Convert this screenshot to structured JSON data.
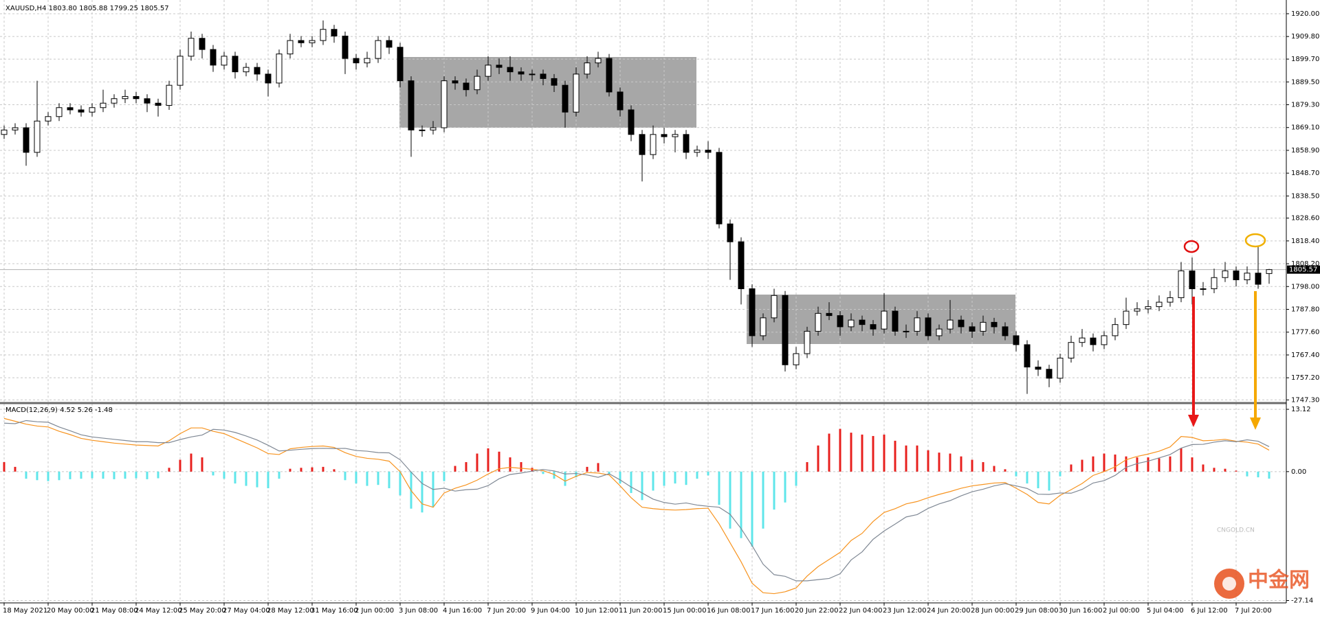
{
  "chart_data": [
    {
      "type": "candlestick",
      "header": "XAUUSD,H4  1803.80 1805.88 1799.25 1805.57",
      "categories": [
        "18 May 2021",
        null,
        null,
        null,
        "20 May 00:00",
        null,
        null,
        null,
        "21 May 08:00",
        null,
        null,
        null,
        "24 May 12:00",
        null,
        null,
        null,
        "25 May 20:00",
        null,
        null,
        null,
        "27 May 04:00",
        null,
        null,
        null,
        "28 May 12:00",
        null,
        null,
        null,
        "31 May 16:00",
        null,
        null,
        null,
        "2 Jun 00:00",
        null,
        null,
        null,
        "3 Jun 08:00",
        null,
        null,
        null,
        "4 Jun 16:00",
        null,
        null,
        null,
        "7 Jun 20:00",
        null,
        null,
        null,
        "9 Jun 04:00",
        null,
        null,
        null,
        "10 Jun 12:00",
        null,
        null,
        null,
        "11 Jun 20:00",
        null,
        null,
        null,
        "15 Jun 00:00",
        null,
        null,
        null,
        "16 Jun 08:00",
        null,
        null,
        null,
        "17 Jun 16:00",
        null,
        null,
        null,
        "20 Jun 22:00",
        null,
        null,
        null,
        "22 Jun 04:00",
        null,
        null,
        null,
        "23 Jun 12:00",
        null,
        null,
        null,
        "24 Jun 20:00",
        null,
        null,
        null,
        "28 Jun 00:00",
        null,
        null,
        null,
        "29 Jun 08:00",
        null,
        null,
        null,
        "30 Jun 16:00",
        null,
        null,
        null,
        "2 Jul 00:00",
        null,
        null,
        null,
        "5 Jul 04:00",
        null,
        null,
        null,
        "6 Jul 12:00",
        null,
        null,
        null,
        "7 Jul 20:00",
        null,
        null,
        null
      ],
      "open": [
        1866,
        1868,
        1869,
        1858,
        1872,
        1874,
        1878,
        1877,
        1876,
        1878,
        1880,
        1882,
        1883,
        1882,
        1880,
        1879,
        1888,
        1901,
        1909,
        1904,
        1897,
        1901,
        1894,
        1896,
        1893,
        1889,
        1902,
        1908,
        1907,
        1908,
        1913,
        1910,
        1900,
        1898,
        1900,
        1908,
        1905,
        1890,
        1868,
        1868,
        1869,
        1890,
        1889,
        1886,
        1892,
        1897,
        1896,
        1894,
        1893,
        1893,
        1891,
        1888,
        1876,
        1893,
        1898,
        1900,
        1885,
        1877,
        1866,
        1857,
        1866,
        1865,
        1866,
        1858,
        1859,
        1858,
        1826,
        1818,
        1797,
        1776,
        1784,
        1794,
        1763,
        1768,
        1778,
        1786,
        1785,
        1780,
        1783,
        1781,
        1779,
        1787,
        1778,
        1778,
        1784,
        1776,
        1779,
        1783,
        1780,
        1778,
        1782,
        1780,
        1776,
        1772,
        1762,
        1761,
        1757,
        1766,
        1773,
        1775,
        1772,
        1776,
        1781,
        1787,
        1788,
        1789,
        1791,
        1793,
        1805,
        1797,
        1797,
        1802,
        1805,
        1801,
        1804,
        1803.8
      ],
      "high": [
        1870,
        1871,
        1871,
        1890,
        1876,
        1880,
        1880,
        1879,
        1880,
        1886,
        1884,
        1886,
        1885,
        1884,
        1882,
        1890,
        1904,
        1912,
        1911,
        1906,
        1903,
        1903,
        1898,
        1898,
        1895,
        1904,
        1911,
        1910,
        1910,
        1917,
        1915,
        1912,
        1902,
        1903,
        1910,
        1910,
        1907,
        1892,
        1870,
        1872,
        1892,
        1892,
        1891,
        1895,
        1901,
        1900,
        1901,
        1896,
        1895,
        1895,
        1893,
        1890,
        1896,
        1901,
        1903,
        1902,
        1887,
        1879,
        1868,
        1870,
        1869,
        1868,
        1868,
        1861,
        1863,
        1860,
        1828,
        1820,
        1799,
        1786,
        1797,
        1796,
        1771,
        1780,
        1789,
        1791,
        1787,
        1786,
        1785,
        1783,
        1795,
        1789,
        1781,
        1787,
        1786,
        1781,
        1792,
        1785,
        1782,
        1785,
        1784,
        1782,
        1778,
        1774,
        1765,
        1763,
        1768,
        1776,
        1779,
        1777,
        1778,
        1784,
        1793,
        1791,
        1792,
        1794,
        1796,
        1809,
        1811,
        1800,
        1806,
        1809,
        1807,
        1807,
        1816,
        1805.88
      ],
      "low": [
        1864,
        1866,
        1852,
        1856,
        1870,
        1872,
        1875,
        1874,
        1874,
        1876,
        1878,
        1880,
        1880,
        1876,
        1874,
        1877,
        1886,
        1899,
        1900,
        1894,
        1895,
        1891,
        1892,
        1890,
        1883,
        1887,
        1900,
        1905,
        1905,
        1906,
        1907,
        1893,
        1895,
        1896,
        1898,
        1902,
        1887,
        1856,
        1865,
        1866,
        1867,
        1886,
        1883,
        1884,
        1890,
        1893,
        1890,
        1890,
        1890,
        1888,
        1885,
        1869,
        1874,
        1891,
        1896,
        1883,
        1874,
        1863,
        1845,
        1855,
        1862,
        1858,
        1855,
        1856,
        1855,
        1824,
        1801,
        1790,
        1771,
        1774,
        1782,
        1760,
        1761,
        1766,
        1776,
        1783,
        1776,
        1778,
        1778,
        1776,
        1777,
        1776,
        1775,
        1776,
        1774,
        1774,
        1777,
        1777,
        1775,
        1776,
        1777,
        1774,
        1769,
        1750,
        1758,
        1753,
        1755,
        1764,
        1771,
        1769,
        1770,
        1774,
        1779,
        1785,
        1786,
        1787,
        1789,
        1791,
        1790,
        1794,
        1795,
        1800,
        1798,
        1799,
        1797,
        1799.25
      ],
      "close": [
        1868,
        1869,
        1858,
        1872,
        1874,
        1878,
        1877,
        1876,
        1878,
        1880,
        1882,
        1883,
        1882,
        1880,
        1879,
        1888,
        1901,
        1909,
        1904,
        1897,
        1901,
        1894,
        1896,
        1893,
        1889,
        1902,
        1908,
        1907,
        1908,
        1913,
        1910,
        1900,
        1898,
        1900,
        1908,
        1905,
        1890,
        1868,
        1868,
        1869,
        1890,
        1889,
        1886,
        1892,
        1897,
        1896,
        1894,
        1893,
        1893,
        1891,
        1888,
        1876,
        1893,
        1898,
        1900,
        1885,
        1877,
        1866,
        1857,
        1866,
        1865,
        1866,
        1858,
        1859,
        1858,
        1826,
        1818,
        1797,
        1776,
        1784,
        1794,
        1763,
        1768,
        1778,
        1786,
        1785,
        1780,
        1783,
        1781,
        1779,
        1787,
        1778,
        1778,
        1784,
        1776,
        1779,
        1783,
        1780,
        1778,
        1782,
        1780,
        1776,
        1772,
        1762,
        1761,
        1757,
        1766,
        1773,
        1775,
        1772,
        1776,
        1781,
        1787,
        1788,
        1789,
        1791,
        1793,
        1805,
        1797,
        1797,
        1802,
        1805,
        1801,
        1804,
        1799,
        1805.57
      ],
      "bull_color": "#ffffff",
      "bear_color": "#000000",
      "current_price": 1805.57,
      "ylim": [
        1746.5,
        1924.9
      ],
      "yticks": [
        {
          "value": 1920,
          "label": "1920.00"
        },
        {
          "value": 1909.8,
          "label": "1909.80"
        },
        {
          "value": 1899.7,
          "label": "1899.70"
        },
        {
          "value": 1889.5,
          "label": "1889.50"
        },
        {
          "value": 1879.3,
          "label": "1879.30"
        },
        {
          "value": 1869.1,
          "label": "1869.10"
        },
        {
          "value": 1858.9,
          "label": "1858.90"
        },
        {
          "value": 1848.7,
          "label": "1848.70"
        },
        {
          "value": 1838.5,
          "label": "1838.50"
        },
        {
          "value": 1828.6,
          "label": "1828.60"
        },
        {
          "value": 1818.4,
          "label": "1818.40"
        },
        {
          "value": 1808.2,
          "label": "1808.20"
        },
        {
          "value": 1798,
          "label": "1798.00"
        },
        {
          "value": 1787.8,
          "label": "1787.80"
        },
        {
          "value": 1777.6,
          "label": "1777.60"
        },
        {
          "value": 1767.4,
          "label": "1767.40"
        },
        {
          "value": 1757.2,
          "label": "1757.20"
        },
        {
          "value": 1747.3,
          "label": "1747.30"
        }
      ],
      "grid": true
    },
    {
      "type": "macd",
      "title": "MACD(12,26,9) 4.52 5.26 -1.48",
      "histogram": {
        "pos_color": "#e8201e",
        "neg_color": "#5fe6ea",
        "values": [
          2,
          1,
          -1.5,
          -1.8,
          -2,
          -1.8,
          -1.6,
          -1.5,
          -1.4,
          -1.5,
          -1.6,
          -1.5,
          -1.4,
          -1.6,
          -1.4,
          0.8,
          2.5,
          3.8,
          3,
          -0.8,
          -1.5,
          -2.5,
          -3,
          -3.3,
          -3.5,
          -1.5,
          0.6,
          0.8,
          0.9,
          1,
          0.5,
          -1.8,
          -2.5,
          -3,
          -2.8,
          -3.5,
          -5,
          -7.8,
          -8.6,
          -7.5,
          -2,
          1.2,
          2,
          3.8,
          4.9,
          4.2,
          3,
          2,
          0.8,
          -0.5,
          -1.5,
          -3,
          -1.2,
          1,
          1.8,
          -0.5,
          -2.5,
          -4.5,
          -6,
          -4,
          -3,
          -2.5,
          -2.8,
          -1.5,
          -0.8,
          -7,
          -12,
          -14,
          -15.8,
          -12,
          -8,
          -6.5,
          -3,
          2,
          5.5,
          8,
          9,
          8.2,
          7.8,
          7.5,
          7.8,
          6.5,
          5.5,
          5.5,
          4.5,
          4,
          3.8,
          3.2,
          2.5,
          2,
          1.2,
          0.5,
          -1,
          -2.5,
          -3.5,
          -4,
          -1,
          1.5,
          2.5,
          3.2,
          3.8,
          3.6,
          3.2,
          3,
          3,
          2.8,
          3.2,
          4.9,
          3,
          1.5,
          0.8,
          0.6,
          0.2,
          -1,
          -1.2,
          -1.48
        ]
      },
      "lines": [
        {
          "color": "#f7931e",
          "values": [
            11.2,
            10.6,
            10,
            9.6,
            9.4,
            8.5,
            7.8,
            7,
            6.6,
            6.3,
            6,
            5.8,
            5.6,
            5.5,
            5.4,
            6.5,
            8,
            9.2,
            9.2,
            8.5,
            8,
            7,
            6,
            5,
            3.8,
            3.6,
            4.8,
            5.1,
            5.3,
            5.4,
            5.1,
            4,
            3.2,
            2.8,
            2.6,
            2.2,
            0,
            -4,
            -6.8,
            -7.5,
            -4.5,
            -3.5,
            -2.8,
            -1.8,
            -0.5,
            0.6,
            0.9,
            0.7,
            0.5,
            0.2,
            -0.6,
            -2,
            -1,
            -0.2,
            -0.3,
            -0.7,
            -3,
            -5.5,
            -7.5,
            -7.8,
            -8,
            -8.1,
            -8,
            -7.8,
            -7.7,
            -11,
            -15,
            -19,
            -23.5,
            -25.5,
            -25.7,
            -25.3,
            -24.5,
            -22,
            -20,
            -18.5,
            -17,
            -14.5,
            -13,
            -10.5,
            -8.6,
            -7.8,
            -6.8,
            -6.3,
            -5.5,
            -4.8,
            -4.2,
            -3.5,
            -3,
            -2.7,
            -2.4,
            -2.3,
            -3.5,
            -4.8,
            -6.5,
            -6.8,
            -5,
            -3.8,
            -2.5,
            -0.8,
            0,
            1,
            2.5,
            3.2,
            3.7,
            4.3,
            5.2,
            7.4,
            7.2,
            6.5,
            6.6,
            6.8,
            6.4,
            6.2,
            5.8,
            4.52
          ]
        },
        {
          "color": "#7f8894",
          "values": [
            10.2,
            10.1,
            10.75,
            10.5,
            10.4,
            9.4,
            8.6,
            7.75,
            7.3,
            7.05,
            6.8,
            6.55,
            6.3,
            6.3,
            6.1,
            6.1,
            6.75,
            7.3,
            7.7,
            8.9,
            8.75,
            8.25,
            7.5,
            6.65,
            5.55,
            4.35,
            4.5,
            4.7,
            4.85,
            4.9,
            4.85,
            4.9,
            4.45,
            4.3,
            4,
            3.95,
            2.5,
            -0.1,
            -2.5,
            -3.75,
            -3.5,
            -4.1,
            -3.8,
            -3.7,
            -2.95,
            -1.5,
            -0.6,
            -0.3,
            0.1,
            0.45,
            0.15,
            -0.5,
            -0.4,
            -0.7,
            -1.2,
            -0.45,
            -1.75,
            -3.25,
            -4.5,
            -5.8,
            -6.5,
            -6.85,
            -6.6,
            -7.05,
            -7.3,
            -7.5,
            -9,
            -12,
            -15.6,
            -19.5,
            -21.7,
            -22.05,
            -23,
            -23,
            -22.75,
            -22.5,
            -21.5,
            -18.6,
            -16.9,
            -14.25,
            -12.5,
            -11.05,
            -9.55,
            -9.05,
            -7.75,
            -6.8,
            -6.1,
            -5.1,
            -4.25,
            -3.7,
            -3,
            -2.55,
            -3,
            -3.55,
            -4.75,
            -4.8,
            -4.5,
            -4.55,
            -3.75,
            -2.4,
            -1.9,
            -0.8,
            0.9,
            1.7,
            2.2,
            2.9,
            3.6,
            4.95,
            5.7,
            5.75,
            6.2,
            6.5,
            6.3,
            6.7,
            6.4,
            5.26
          ]
        }
      ],
      "ylim": [
        -27.5,
        14
      ],
      "yticks": [
        13.12,
        {
          "value": 0,
          "label": "0.00"
        },
        -27.14
      ],
      "grid": true
    }
  ],
  "watermark": {
    "name": "中金网",
    "site": "CNGOLD.CN"
  }
}
